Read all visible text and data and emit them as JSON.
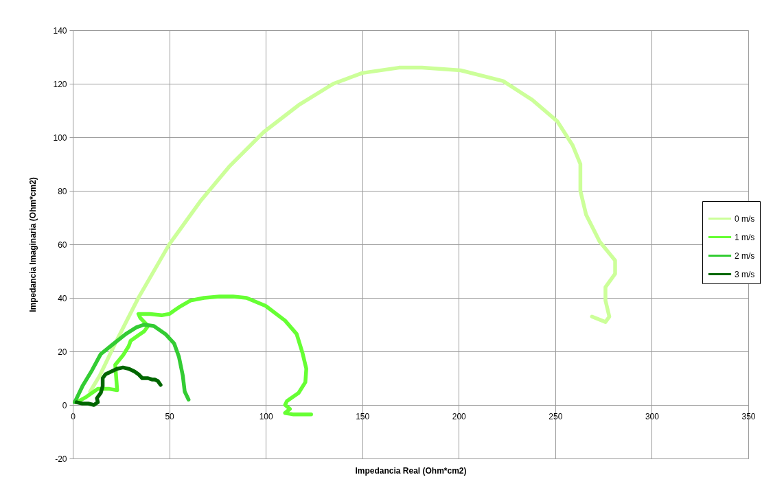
{
  "chart_data": {
    "type": "line",
    "xlabel": "Impedancia Real (Ohm*cm2)",
    "ylabel": "Impedancia Imaginaria  (Ohm*cm2)",
    "xlim": [
      0,
      350
    ],
    "xticks": [
      0,
      50,
      100,
      150,
      200,
      250,
      300,
      350
    ],
    "ylim": [
      -20,
      140
    ],
    "yticks": [
      -20,
      0,
      20,
      40,
      60,
      80,
      100,
      120,
      140
    ],
    "grid": true,
    "legend": "right",
    "series": [
      {
        "name": "0 m/s",
        "color": "#ccff99",
        "x": [
          9,
          14,
          22,
          34,
          50,
          66,
          81,
          99,
          117,
          135,
          150,
          169,
          181,
          201,
          223,
          238,
          251,
          259,
          263,
          263,
          266,
          273,
          281,
          281,
          276,
          276,
          278,
          276,
          269
        ],
        "values": [
          5,
          11,
          23,
          40,
          60,
          76,
          89,
          102,
          112,
          120,
          124,
          126,
          126,
          125,
          121,
          114,
          106,
          97,
          90,
          80,
          71,
          61,
          54,
          49,
          44,
          39,
          33,
          31,
          33
        ]
      },
      {
        "name": "1 m/s",
        "color": "#66ff33",
        "x": [
          2,
          7,
          13,
          19,
          23,
          22,
          26,
          29,
          30,
          34,
          37,
          39,
          35,
          34,
          40,
          46,
          50,
          55,
          61,
          68,
          76,
          83,
          90,
          100,
          110,
          116,
          119,
          121,
          120.5,
          117,
          111,
          110,
          112.5,
          110,
          114,
          118,
          123.5
        ],
        "values": [
          1,
          3,
          6,
          6,
          5.5,
          15,
          18.5,
          22,
          24,
          26,
          27.5,
          29.5,
          32.5,
          34,
          34,
          33.5,
          34,
          36.5,
          39,
          40,
          40.5,
          40.5,
          40,
          37,
          31.5,
          26.5,
          19.5,
          13.5,
          8.5,
          4.5,
          1.5,
          0,
          -1.5,
          -3,
          -3.5,
          -3.5,
          -3.5
        ]
      },
      {
        "name": "2 m/s",
        "color": "#33cc33",
        "x": [
          1,
          5,
          10,
          14.5,
          20.5,
          27.5,
          33,
          37,
          42,
          48,
          52.5,
          55,
          57,
          58,
          60
        ],
        "values": [
          1,
          7,
          13,
          19,
          22.5,
          26.5,
          29,
          30,
          29.5,
          26.5,
          23,
          18,
          11,
          5,
          2
        ]
      },
      {
        "name": "3 m/s",
        "color": "#006600",
        "x": [
          2,
          5,
          8,
          11,
          13,
          12.5,
          14.5,
          15.5,
          15.5,
          17,
          20,
          23,
          26,
          29,
          32,
          34,
          36,
          39,
          41,
          42.5,
          44,
          45.5
        ],
        "values": [
          1,
          0.5,
          0.5,
          0,
          1,
          2.5,
          4.5,
          7,
          10,
          11.5,
          12.5,
          13.5,
          14,
          13.5,
          12.5,
          11.5,
          10,
          10,
          9.5,
          9.5,
          9,
          7.5
        ]
      }
    ]
  }
}
